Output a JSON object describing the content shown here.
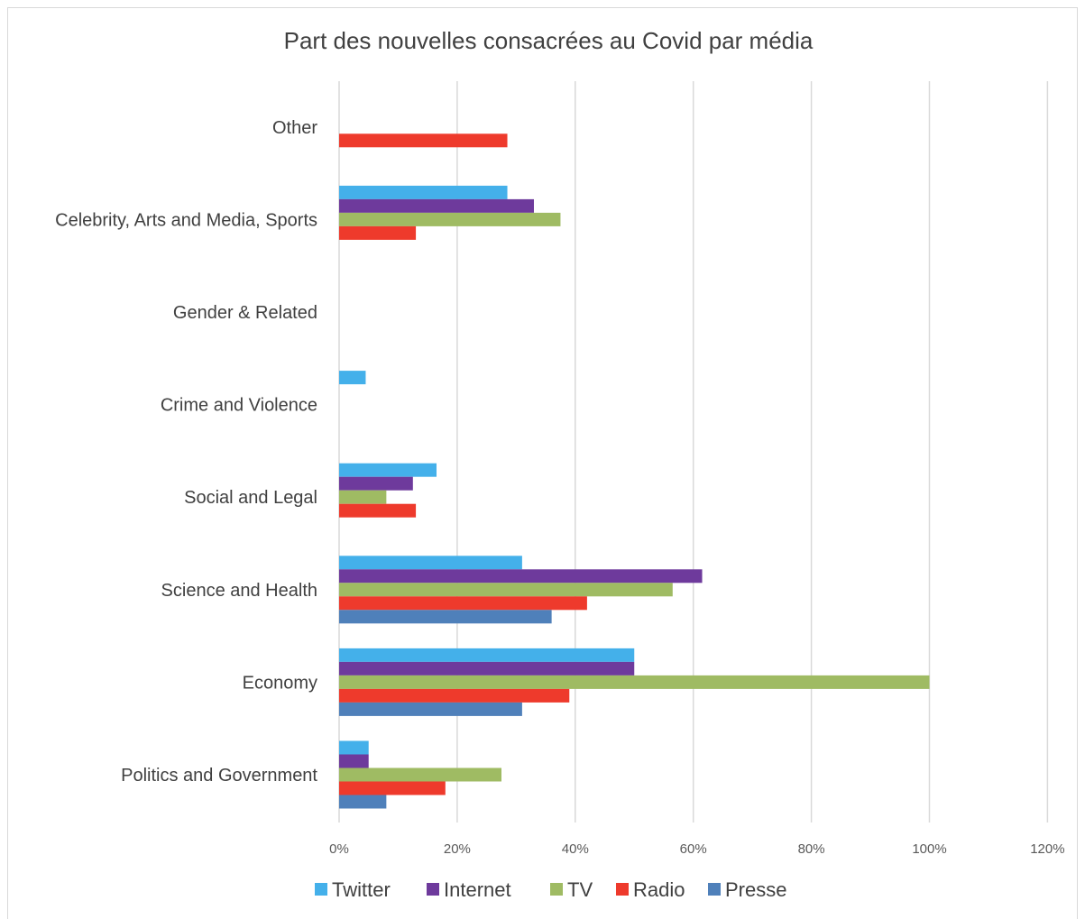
{
  "chart_data": {
    "type": "bar",
    "orientation": "horizontal",
    "title": "Part des nouvelles consacrées au Covid par média",
    "categories": [
      "Politics and Government",
      "Economy",
      "Science and Health",
      "Social and Legal",
      "Crime and Violence",
      "Gender & Related",
      "Celebrity, Arts and Media, Sports",
      "Other"
    ],
    "x_ticks": [
      "0%",
      "20%",
      "40%",
      "60%",
      "80%",
      "100%",
      "120%"
    ],
    "xlim": [
      0,
      120
    ],
    "grid": true,
    "legend_position": "bottom",
    "series": [
      {
        "name": "Twitter",
        "color": "#44b0ea",
        "values": [
          5,
          50,
          31,
          16.5,
          4.5,
          0,
          28.5,
          0
        ]
      },
      {
        "name": "Internet",
        "color": "#6e3a9c",
        "values": [
          5,
          50,
          61.5,
          12.5,
          0,
          0,
          33,
          0
        ]
      },
      {
        "name": "TV",
        "color": "#9fbb63",
        "values": [
          27.5,
          100,
          56.5,
          8,
          0,
          0,
          37.5,
          0
        ]
      },
      {
        "name": "Radio",
        "color": "#ee3a2c",
        "values": [
          18,
          39,
          42,
          13,
          0,
          0,
          13,
          28.5
        ]
      },
      {
        "name": "Presse",
        "color": "#4f80ba",
        "values": [
          8,
          31,
          36,
          0,
          0,
          0,
          0,
          0
        ]
      }
    ]
  }
}
